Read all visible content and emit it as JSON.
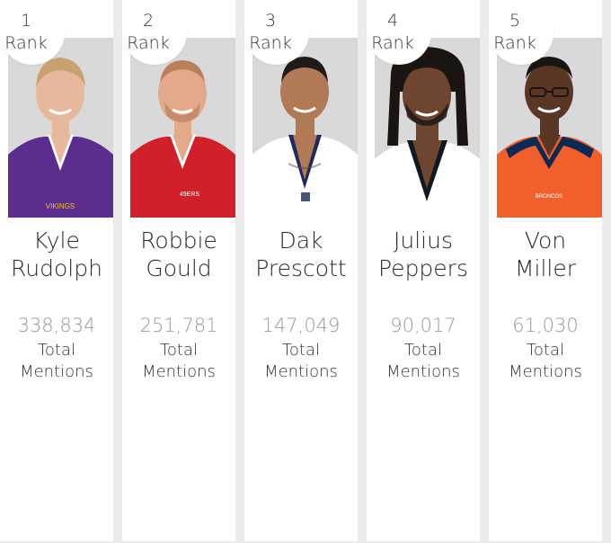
{
  "rank_label": "Rank",
  "mentions_label_line1": "Total",
  "mentions_label_line2": "Mentions",
  "players": [
    {
      "rank": "1",
      "first": "Kyle",
      "last": "Rudolph",
      "mentions": "338,834",
      "jersey_color": "#5b2d8e",
      "collar_color": "#ffffff",
      "skin": "#e7b99c",
      "hair": "#c9a070",
      "team_mark": "VIKINGS"
    },
    {
      "rank": "2",
      "first": "Robbie",
      "last": "Gould",
      "mentions": "251,781",
      "jersey_color": "#d2202b",
      "collar_color": "#ffffff",
      "skin": "#e2a98a",
      "hair": "#b8805a",
      "team_mark": "49ERS"
    },
    {
      "rank": "3",
      "first": "Dak",
      "last": "Prescott",
      "mentions": "147,049",
      "jersey_color": "#ffffff",
      "collar_color": "#1d2a5b",
      "skin": "#b07a56",
      "hair": "#1e1b19",
      "team_mark": ""
    },
    {
      "rank": "4",
      "first": "Julius",
      "last": "Peppers",
      "mentions": "90,017",
      "jersey_color": "#ffffff",
      "collar_color": "#101820",
      "skin": "#6e4630",
      "hair": "#1a1512",
      "team_mark": ""
    },
    {
      "rank": "5",
      "first": "Von",
      "last": "Miller",
      "mentions": "61,030",
      "jersey_color": "#f1602b",
      "collar_color": "#0b2a53",
      "skin": "#5a3724",
      "hair": "#1a1512",
      "team_mark": "BRONCOS"
    }
  ]
}
